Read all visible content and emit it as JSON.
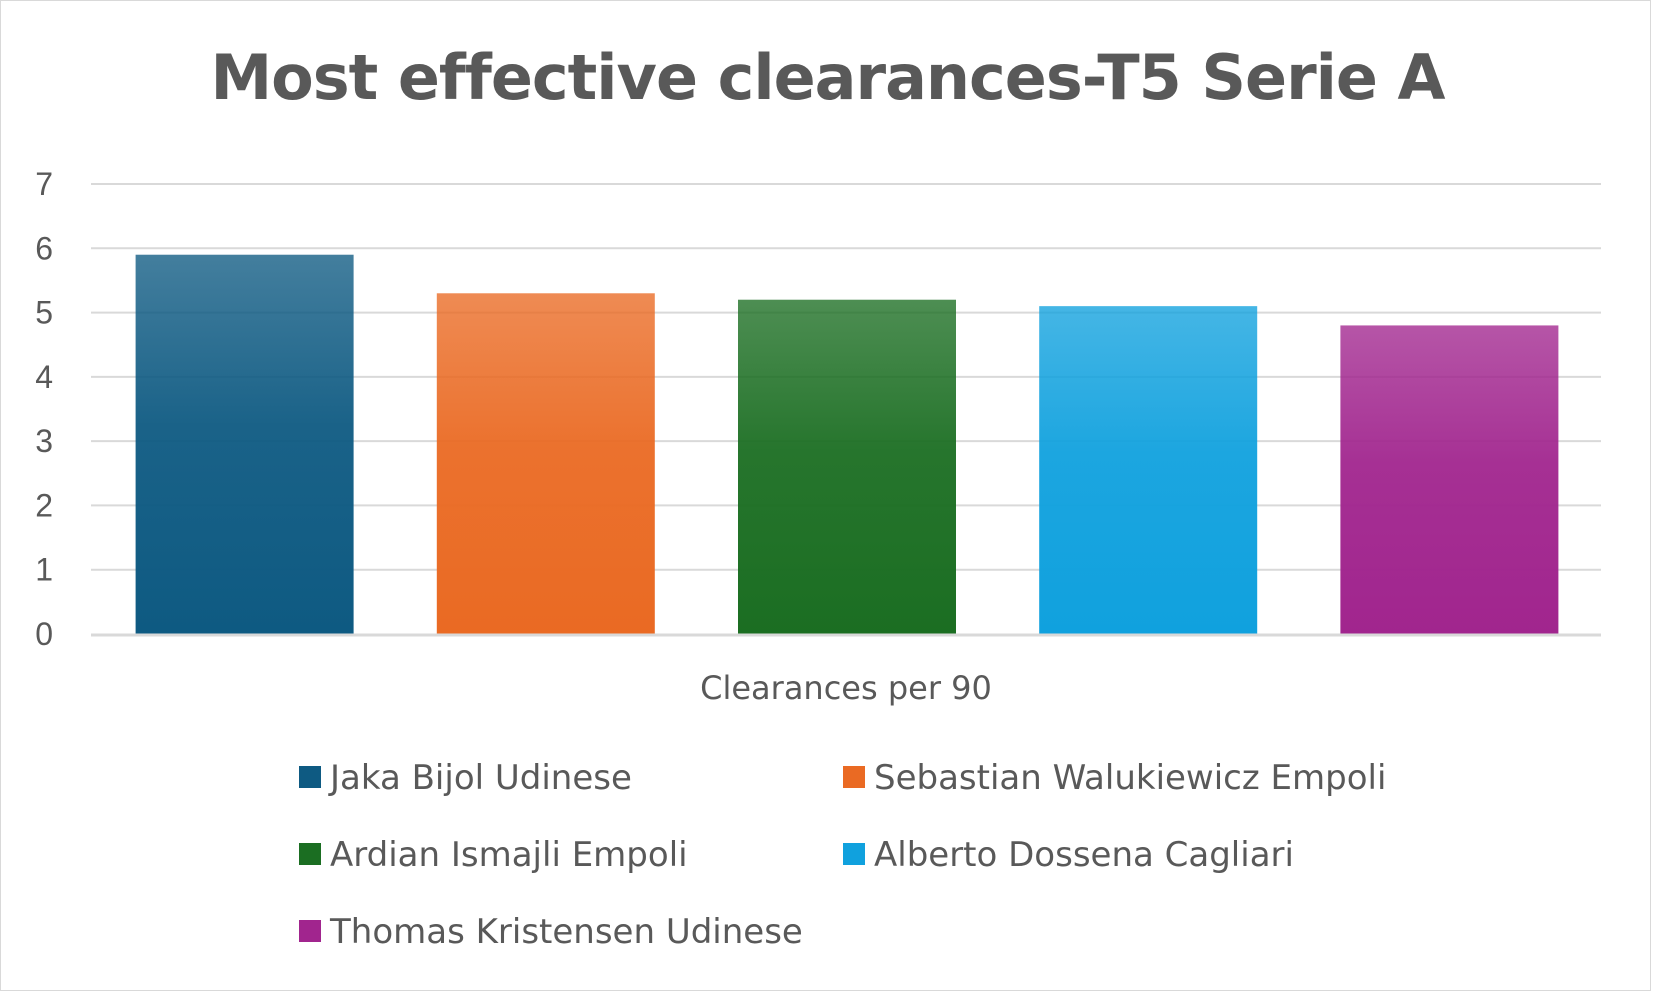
{
  "chart_data": {
    "type": "bar",
    "title": "Most effective clearances-T5 Serie A",
    "category_label": "Clearances per 90",
    "ylim": [
      0,
      7
    ],
    "yticks": [
      "0",
      "1",
      "2",
      "3",
      "4",
      "5",
      "6",
      "7"
    ],
    "grid": true,
    "legend_position": "bottom",
    "series": [
      {
        "name": "Jaka Bijol Udinese",
        "value": 5.9,
        "color": "#0e5a82"
      },
      {
        "name": "Sebastian Walukiewicz Empoli",
        "value": 5.3,
        "color": "#ea6a23"
      },
      {
        "name": "Ardian Ismajli Empoli",
        "value": 5.2,
        "color": "#1b6e22"
      },
      {
        "name": "Alberto Dossena Cagliari",
        "value": 5.1,
        "color": "#10a1de"
      },
      {
        "name": "Thomas Kristensen Udinese",
        "value": 4.8,
        "color": "#a1258e"
      }
    ]
  }
}
